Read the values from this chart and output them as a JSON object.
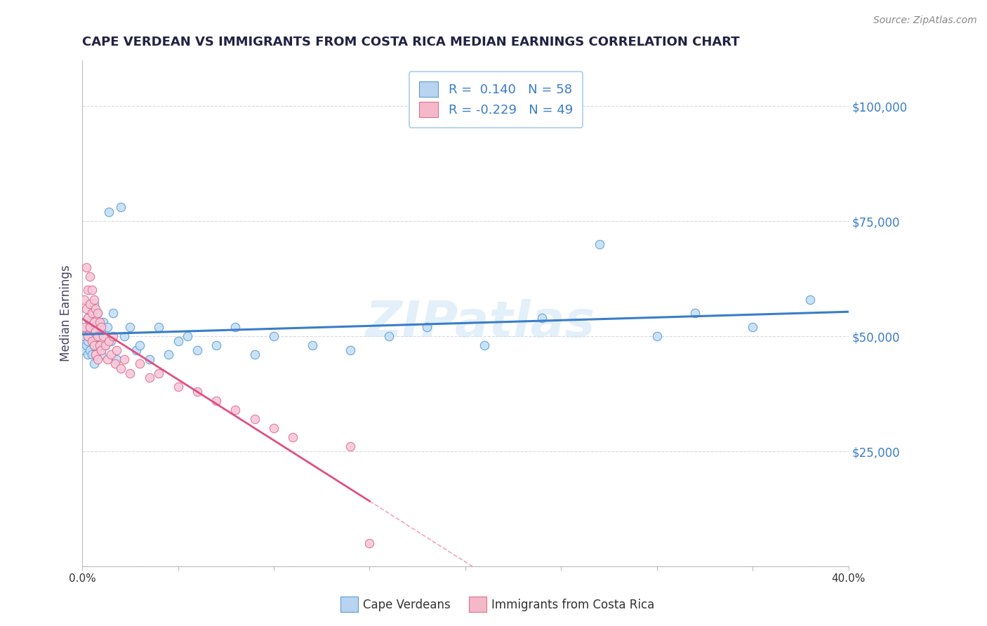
{
  "title": "CAPE VERDEAN VS IMMIGRANTS FROM COSTA RICA MEDIAN EARNINGS CORRELATION CHART",
  "source": "Source: ZipAtlas.com",
  "xlabel_bottom": [
    "Cape Verdeans",
    "Immigrants from Costa Rica"
  ],
  "ylabel": "Median Earnings",
  "x_min": 0.0,
  "x_max": 0.4,
  "y_min": 0,
  "y_max": 110000,
  "y_ticks": [
    0,
    25000,
    50000,
    75000,
    100000
  ],
  "y_tick_labels": [
    "",
    "$25,000",
    "$50,000",
    "$75,000",
    "$100,000"
  ],
  "x_ticks": [
    0.0,
    0.05,
    0.1,
    0.15,
    0.2,
    0.25,
    0.3,
    0.35,
    0.4
  ],
  "x_tick_labels": [
    "0.0%",
    "",
    "",
    "",
    "",
    "",
    "",
    "",
    "40.0%"
  ],
  "r_blue": 0.14,
  "n_blue": 58,
  "r_pink": -0.229,
  "n_pink": 49,
  "line_blue": "#3a7dc9",
  "line_pink": "#e05080",
  "watermark": "ZIPatlas",
  "legend_blue_fill": "#b8d4f0",
  "legend_pink_fill": "#f4b8c8",
  "dot_blue_fill": "#c5dff5",
  "dot_blue_edge": "#5a9dd5",
  "dot_pink_fill": "#f8c8d8",
  "dot_pink_edge": "#e07090",
  "background_color": "#ffffff",
  "grid_color": "#c8c8d8",
  "title_color": "#222244",
  "axis_label_color": "#444466",
  "tick_label_color_y": "#3a7dc9",
  "tick_label_color_x": "#333333",
  "blue_points_x": [
    0.001,
    0.001,
    0.002,
    0.002,
    0.003,
    0.003,
    0.003,
    0.004,
    0.004,
    0.004,
    0.005,
    0.005,
    0.005,
    0.006,
    0.006,
    0.006,
    0.007,
    0.007,
    0.007,
    0.008,
    0.008,
    0.009,
    0.009,
    0.01,
    0.01,
    0.011,
    0.012,
    0.013,
    0.014,
    0.015,
    0.016,
    0.018,
    0.02,
    0.022,
    0.025,
    0.028,
    0.03,
    0.035,
    0.04,
    0.045,
    0.05,
    0.055,
    0.06,
    0.07,
    0.08,
    0.09,
    0.1,
    0.12,
    0.14,
    0.16,
    0.18,
    0.21,
    0.24,
    0.27,
    0.3,
    0.32,
    0.35,
    0.38
  ],
  "blue_points_y": [
    50000,
    47000,
    52000,
    48000,
    54000,
    49000,
    46000,
    53000,
    51000,
    47000,
    55000,
    50000,
    46000,
    57000,
    48000,
    44000,
    52000,
    50000,
    46000,
    55000,
    48000,
    53000,
    47000,
    51000,
    46000,
    53000,
    48000,
    52000,
    77000,
    49000,
    55000,
    45000,
    78000,
    50000,
    52000,
    47000,
    48000,
    45000,
    52000,
    46000,
    49000,
    50000,
    47000,
    48000,
    52000,
    46000,
    50000,
    48000,
    47000,
    50000,
    52000,
    48000,
    54000,
    70000,
    50000,
    55000,
    52000,
    58000
  ],
  "pink_points_x": [
    0.001,
    0.001,
    0.002,
    0.002,
    0.003,
    0.003,
    0.003,
    0.004,
    0.004,
    0.004,
    0.005,
    0.005,
    0.005,
    0.006,
    0.006,
    0.006,
    0.007,
    0.007,
    0.007,
    0.008,
    0.008,
    0.008,
    0.009,
    0.009,
    0.01,
    0.01,
    0.011,
    0.012,
    0.013,
    0.014,
    0.015,
    0.016,
    0.017,
    0.018,
    0.02,
    0.022,
    0.025,
    0.03,
    0.035,
    0.04,
    0.05,
    0.06,
    0.07,
    0.08,
    0.09,
    0.1,
    0.11,
    0.14,
    0.15
  ],
  "pink_points_y": [
    58000,
    52000,
    65000,
    56000,
    60000,
    54000,
    50000,
    63000,
    57000,
    52000,
    60000,
    55000,
    49000,
    58000,
    53000,
    48000,
    56000,
    51000,
    46000,
    55000,
    50000,
    45000,
    53000,
    48000,
    52000,
    47000,
    50000,
    48000,
    45000,
    49000,
    46000,
    50000,
    44000,
    47000,
    43000,
    45000,
    42000,
    44000,
    41000,
    42000,
    39000,
    38000,
    36000,
    34000,
    32000,
    30000,
    28000,
    26000,
    5000
  ],
  "source_color": "#888888"
}
